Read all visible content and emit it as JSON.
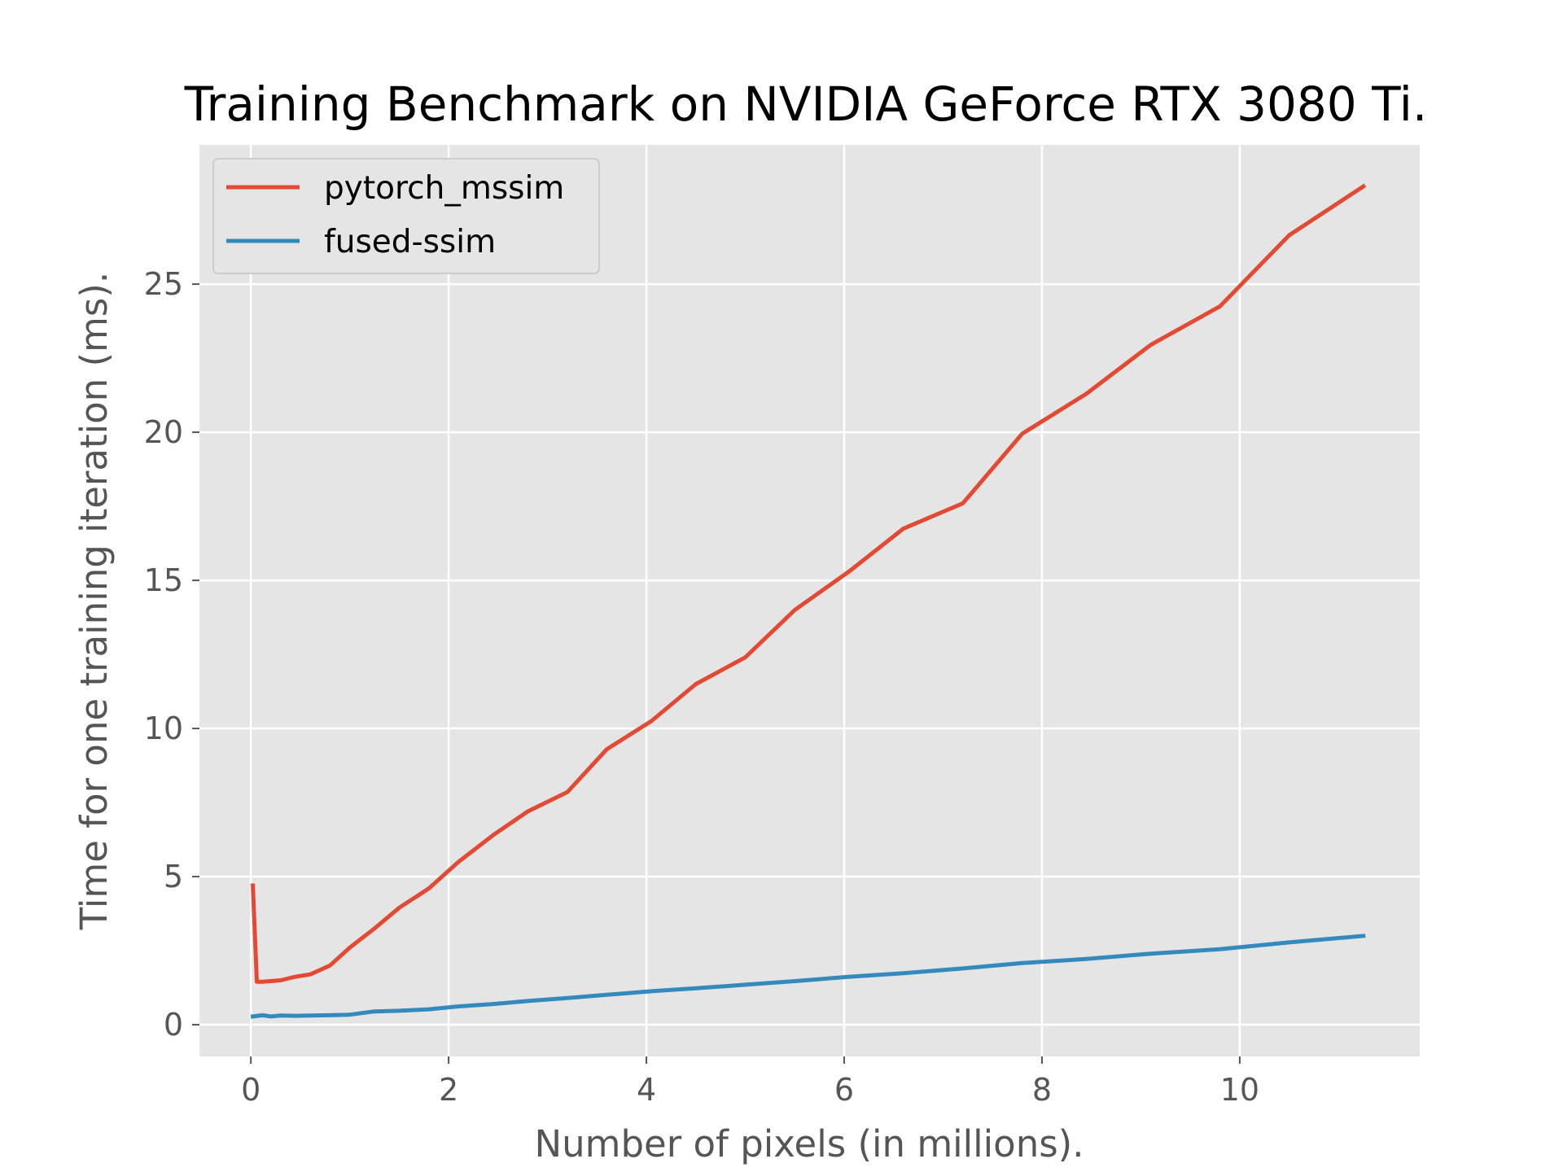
{
  "chart_data": {
    "type": "line",
    "title": "Training Benchmark on NVIDIA GeForce RTX 3080 Ti.",
    "xlabel": "Number of pixels (in millions).",
    "ylabel": "Time for one training iteration (ms).",
    "xlim": [
      -0.52,
      11.82
    ],
    "ylim": [
      -1.07,
      29.7
    ],
    "xticks": [
      0,
      2,
      4,
      6,
      8,
      10
    ],
    "yticks": [
      0,
      5,
      10,
      15,
      20,
      25
    ],
    "xtick_labels": [
      "0",
      "2",
      "4",
      "6",
      "8",
      "10"
    ],
    "ytick_labels": [
      "0",
      "5",
      "10",
      "15",
      "20",
      "25"
    ],
    "grid": true,
    "legend_position": "top-left",
    "background_color": "#e5e5e5",
    "grid_color": "#ffffff",
    "series": [
      {
        "name": "pytorch_mssim",
        "color": "#e24a33",
        "points": [
          [
            0.02,
            4.7
          ],
          [
            0.06,
            1.45
          ],
          [
            0.12,
            1.45
          ],
          [
            0.3,
            1.5
          ],
          [
            0.45,
            1.62
          ],
          [
            0.6,
            1.7
          ],
          [
            0.8,
            2.0
          ],
          [
            1.0,
            2.6
          ],
          [
            1.25,
            3.25
          ],
          [
            1.5,
            3.95
          ],
          [
            1.8,
            4.6
          ],
          [
            2.1,
            5.5
          ],
          [
            2.45,
            6.4
          ],
          [
            2.8,
            7.2
          ],
          [
            3.2,
            7.85
          ],
          [
            3.6,
            9.3
          ],
          [
            4.05,
            10.25
          ],
          [
            4.5,
            11.5
          ],
          [
            5.0,
            12.4
          ],
          [
            5.5,
            14.0
          ],
          [
            6.05,
            15.3
          ],
          [
            6.6,
            16.75
          ],
          [
            7.2,
            17.6
          ],
          [
            7.8,
            19.95
          ],
          [
            8.45,
            21.3
          ],
          [
            9.1,
            22.95
          ],
          [
            9.8,
            24.25
          ],
          [
            10.5,
            26.65
          ],
          [
            11.25,
            28.3
          ]
        ]
      },
      {
        "name": "fused-ssim",
        "color": "#348abd",
        "points": [
          [
            0.02,
            0.28
          ],
          [
            0.12,
            0.32
          ],
          [
            0.2,
            0.28
          ],
          [
            0.3,
            0.31
          ],
          [
            0.45,
            0.3
          ],
          [
            0.6,
            0.31
          ],
          [
            0.8,
            0.32
          ],
          [
            1.0,
            0.34
          ],
          [
            1.25,
            0.45
          ],
          [
            1.5,
            0.47
          ],
          [
            1.8,
            0.52
          ],
          [
            2.1,
            0.62
          ],
          [
            2.45,
            0.7
          ],
          [
            2.8,
            0.8
          ],
          [
            3.2,
            0.9
          ],
          [
            3.6,
            1.01
          ],
          [
            4.05,
            1.13
          ],
          [
            4.5,
            1.23
          ],
          [
            5.0,
            1.35
          ],
          [
            5.5,
            1.47
          ],
          [
            6.05,
            1.62
          ],
          [
            6.6,
            1.74
          ],
          [
            7.2,
            1.9
          ],
          [
            7.8,
            2.08
          ],
          [
            8.45,
            2.22
          ],
          [
            9.1,
            2.4
          ],
          [
            9.8,
            2.55
          ],
          [
            10.5,
            2.78
          ],
          [
            11.25,
            3.0
          ]
        ]
      }
    ]
  }
}
